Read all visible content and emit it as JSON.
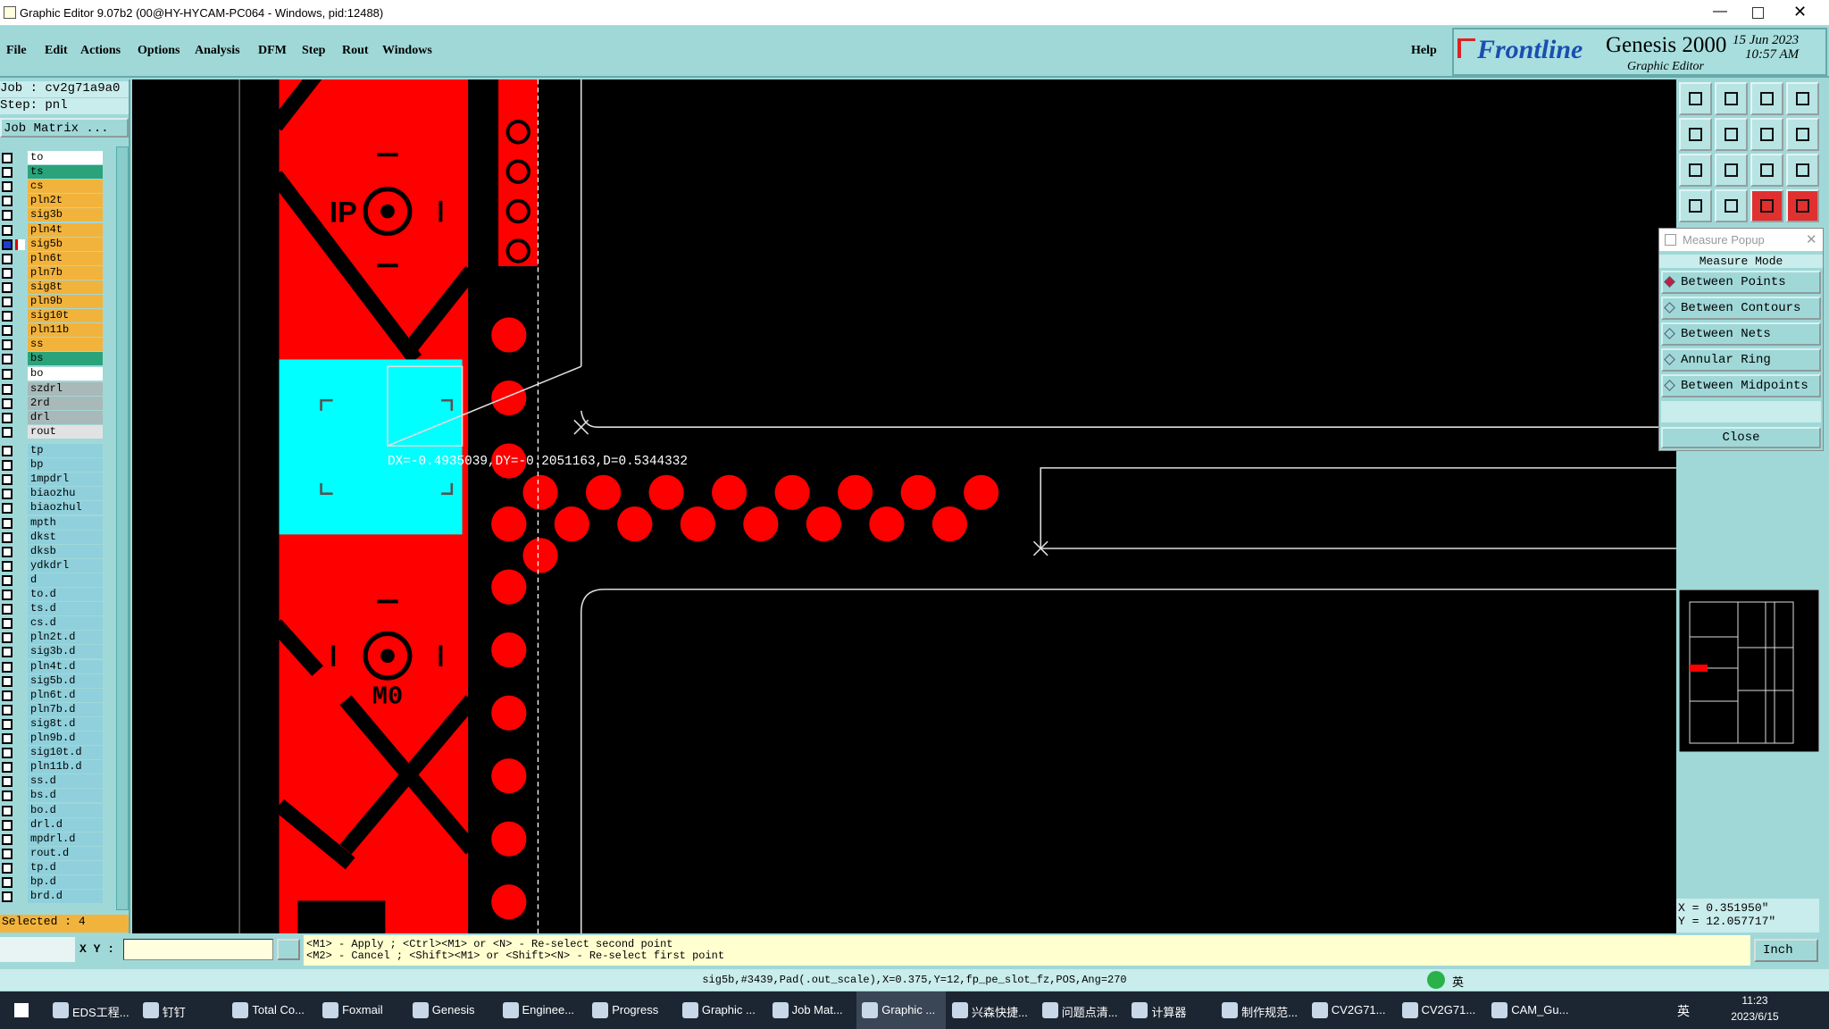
{
  "window": {
    "title": "Graphic Editor 9.07b2 (00@HY-HYCAM-PC064 - Windows, pid:12488)"
  },
  "menu": [
    "File",
    "Edit",
    "Actions",
    "Options",
    "Analysis",
    "DFM",
    "Step",
    "Rout",
    "Windows"
  ],
  "help": "Help",
  "brand": {
    "logo": "Frontline",
    "product": "Genesis 2000",
    "subtitle": "Graphic Editor",
    "date": "15 Jun 2023",
    "time": "10:57 AM"
  },
  "job": {
    "job": "Job : cv2g71a9a0",
    "step": "Step: pnl",
    "matrix": "Job Matrix ..."
  },
  "layer_groups": [
    [
      {
        "name": "to",
        "color": "#ffffff"
      },
      {
        "name": "ts",
        "color": "#2aa37a"
      },
      {
        "name": "cs",
        "color": "#f2b33d"
      },
      {
        "name": "pln2t",
        "color": "#f2b33d"
      },
      {
        "name": "sig3b",
        "color": "#f2b33d"
      },
      {
        "name": "pln4t",
        "color": "#f2b33d"
      },
      {
        "name": "sig5b",
        "color": "#f2b33d",
        "active": true
      },
      {
        "name": "pln6t",
        "color": "#f2b33d"
      },
      {
        "name": "pln7b",
        "color": "#f2b33d"
      },
      {
        "name": "sig8t",
        "color": "#f2b33d"
      },
      {
        "name": "pln9b",
        "color": "#f2b33d"
      },
      {
        "name": "sig10t",
        "color": "#f2b33d"
      },
      {
        "name": "pln11b",
        "color": "#f2b33d"
      },
      {
        "name": "ss",
        "color": "#f2b33d"
      },
      {
        "name": "bs",
        "color": "#2aa37a"
      },
      {
        "name": "bo",
        "color": "#ffffff"
      }
    ],
    [
      {
        "name": "szdrl",
        "color": "#a9b8b8"
      },
      {
        "name": "2rd",
        "color": "#a9b8b8"
      },
      {
        "name": "drl",
        "color": "#a9b8b8"
      },
      {
        "name": "rout",
        "color": "#e2e2e2"
      }
    ],
    [
      {
        "name": "tp",
        "color": "#8fd0dc"
      },
      {
        "name": "bp",
        "color": "#8fd0dc"
      },
      {
        "name": "1mpdrl",
        "color": "#8fd0dc"
      },
      {
        "name": "biaozhu",
        "color": "#8fd0dc"
      },
      {
        "name": "biaozhul",
        "color": "#8fd0dc"
      },
      {
        "name": "mpth",
        "color": "#8fd0dc"
      },
      {
        "name": "dkst",
        "color": "#8fd0dc"
      },
      {
        "name": "dksb",
        "color": "#8fd0dc"
      },
      {
        "name": "ydkdrl",
        "color": "#8fd0dc"
      },
      {
        "name": "d",
        "color": "#8fd0dc"
      },
      {
        "name": "to.d",
        "color": "#8fd0dc"
      },
      {
        "name": "ts.d",
        "color": "#8fd0dc"
      },
      {
        "name": "cs.d",
        "color": "#8fd0dc"
      },
      {
        "name": "pln2t.d",
        "color": "#8fd0dc"
      },
      {
        "name": "sig3b.d",
        "color": "#8fd0dc"
      },
      {
        "name": "pln4t.d",
        "color": "#8fd0dc"
      },
      {
        "name": "sig5b.d",
        "color": "#8fd0dc"
      },
      {
        "name": "pln6t.d",
        "color": "#8fd0dc"
      },
      {
        "name": "pln7b.d",
        "color": "#8fd0dc"
      },
      {
        "name": "sig8t.d",
        "color": "#8fd0dc"
      },
      {
        "name": "pln9b.d",
        "color": "#8fd0dc"
      },
      {
        "name": "sig10t.d",
        "color": "#8fd0dc"
      },
      {
        "name": "pln11b.d",
        "color": "#8fd0dc"
      },
      {
        "name": "ss.d",
        "color": "#8fd0dc"
      },
      {
        "name": "bs.d",
        "color": "#8fd0dc"
      },
      {
        "name": "bo.d",
        "color": "#8fd0dc"
      },
      {
        "name": "drl.d",
        "color": "#8fd0dc"
      },
      {
        "name": "mpdrl.d",
        "color": "#8fd0dc"
      },
      {
        "name": "rout.d",
        "color": "#8fd0dc"
      },
      {
        "name": "tp.d",
        "color": "#8fd0dc"
      },
      {
        "name": "bp.d",
        "color": "#8fd0dc"
      },
      {
        "name": "brd.d",
        "color": "#8fd0dc"
      }
    ]
  ],
  "selected": "Selected : 4",
  "xy_label": "X Y :",
  "hints": [
    "<M1> - Apply ; <Ctrl><M1> or <N> - Re-select second point",
    "<M2> - Cancel ; <Shift><M1> or <Shift><N> - Re-select first point"
  ],
  "units": "Inch",
  "feature_info": "sig5b,#3439,Pad(.out_scale),X=0.375,Y=12,fp_pe_slot_fz,POS,Ang=270",
  "coords": [
    "X = 0.351950\"",
    "Y = 12.057717\""
  ],
  "measure": {
    "title": "Measure Popup",
    "mode": "Measure Mode",
    "options": [
      "Between Points",
      "Between Contours",
      "Between Nets",
      "Annular Ring",
      "Between Midpoints"
    ],
    "close": "Close"
  },
  "canvas": {
    "measurement": "DX=-0.4935039,DY=-0.2051163,D=0.5344332",
    "labels": [
      "IP",
      "M0"
    ]
  },
  "taskbar": {
    "apps": [
      "EDS工程...",
      "钉钉",
      "Total Co...",
      "Foxmail",
      "Genesis",
      "Enginee...",
      "Progress",
      "Graphic ...",
      "Job Mat...",
      "Graphic ...",
      "兴森快捷...",
      "问题点清...",
      "计算器",
      "制作规范...",
      "CV2G71...",
      "CV2G71...",
      "CAM_Gu..."
    ],
    "ime": "英",
    "time": "11:23",
    "date": "2023/6/15"
  }
}
